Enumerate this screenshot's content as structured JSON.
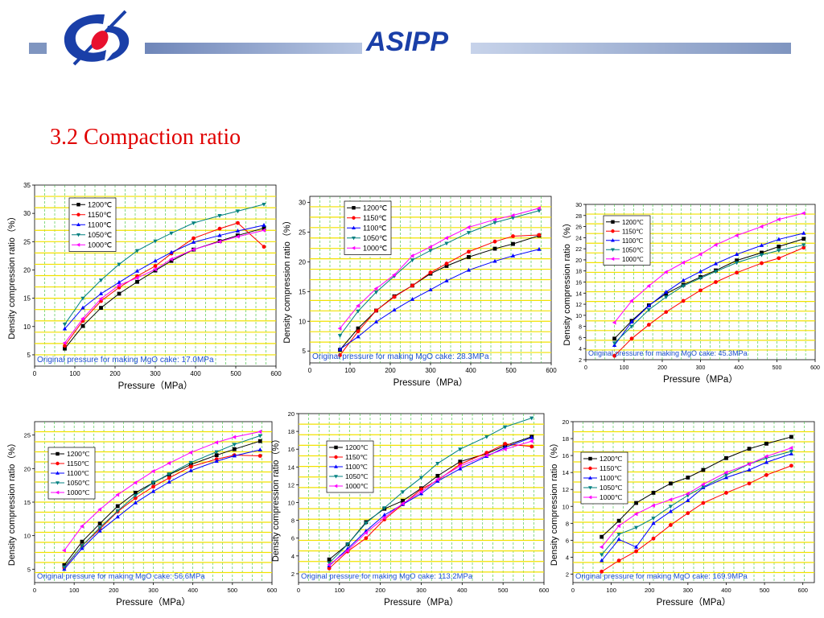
{
  "header": {
    "brand": "ASIPP"
  },
  "slide": {
    "title": "3.2 Compaction ratio"
  },
  "chart_data": [
    {
      "type": "line",
      "xlabel": "Pressure（MPa）",
      "ylabel": "Density compression ratio（%）",
      "xlim": [
        0,
        600
      ],
      "ylim": [
        3,
        35
      ],
      "xticks": [
        0,
        100,
        200,
        300,
        400,
        500,
        600
      ],
      "yticks": [
        5,
        10,
        15,
        20,
        25,
        30,
        35
      ],
      "annotation": "Original pressure for making MgO cake: 17.0MPa",
      "legend_position": "top-left",
      "x": [
        75,
        120,
        165,
        210,
        255,
        300,
        340,
        395,
        460,
        505,
        570
      ],
      "series": [
        {
          "name": "1200℃",
          "color": "#000000",
          "marker": "square",
          "values": [
            6.1,
            10.1,
            13.3,
            15.8,
            17.9,
            19.9,
            21.6,
            23.6,
            25.1,
            26.1,
            27.4
          ]
        },
        {
          "name": "1150℃",
          "color": "#ff0000",
          "marker": "circle",
          "values": [
            6.6,
            11.0,
            14.5,
            16.9,
            18.9,
            20.7,
            22.9,
            25.6,
            27.3,
            28.3,
            24.1
          ]
        },
        {
          "name": "1100℃",
          "color": "#0000ff",
          "marker": "triangle-up",
          "values": [
            9.6,
            13.3,
            15.8,
            17.8,
            19.8,
            21.6,
            23.1,
            24.9,
            26.1,
            26.9,
            27.9
          ]
        },
        {
          "name": "1050℃",
          "color": "#008080",
          "marker": "triangle-down",
          "values": [
            10.4,
            15.0,
            18.2,
            21.0,
            23.4,
            25.1,
            26.5,
            28.3,
            29.6,
            30.4,
            31.6
          ]
        },
        {
          "name": "1000℃",
          "color": "#ff00ff",
          "marker": "triangle-left",
          "values": [
            7.1,
            11.4,
            14.9,
            17.3,
            18.6,
            20.1,
            21.9,
            23.6,
            25.0,
            25.9,
            27.0
          ]
        }
      ]
    },
    {
      "type": "line",
      "xlabel": "Pressure（MPa）",
      "ylabel": "Density compression ratio（%）",
      "xlim": [
        0,
        600
      ],
      "ylim": [
        3,
        31
      ],
      "xticks": [
        0,
        100,
        200,
        300,
        400,
        500,
        600
      ],
      "yticks": [
        5,
        10,
        15,
        20,
        25,
        30
      ],
      "annotation": "Original pressure for making MgO cake: 28.3MPa",
      "legend_position": "top-left",
      "x": [
        75,
        120,
        165,
        210,
        255,
        300,
        340,
        395,
        460,
        505,
        570
      ],
      "series": [
        {
          "name": "1200℃",
          "color": "#000000",
          "marker": "square",
          "values": [
            5.2,
            8.8,
            11.8,
            14.2,
            16.0,
            18.0,
            19.3,
            20.8,
            22.2,
            23.0,
            24.4
          ]
        },
        {
          "name": "1150℃",
          "color": "#ff0000",
          "marker": "circle",
          "values": [
            4.3,
            8.3,
            11.8,
            14.1,
            16.0,
            18.2,
            19.7,
            21.7,
            23.4,
            24.3,
            24.5
          ]
        },
        {
          "name": "1100℃",
          "color": "#0000ff",
          "marker": "triangle-up",
          "values": [
            5.3,
            7.4,
            9.9,
            11.9,
            13.7,
            15.3,
            16.8,
            18.6,
            20.1,
            21.0,
            22.1
          ]
        },
        {
          "name": "1050℃",
          "color": "#008080",
          "marker": "triangle-down",
          "values": [
            7.6,
            11.7,
            14.9,
            17.6,
            20.3,
            21.9,
            23.1,
            24.9,
            26.6,
            27.4,
            28.6
          ]
        },
        {
          "name": "1000℃",
          "color": "#ff00ff",
          "marker": "triangle-left",
          "values": [
            8.8,
            12.6,
            15.5,
            17.8,
            21.0,
            22.5,
            24.0,
            25.8,
            27.1,
            27.8,
            29.0
          ]
        }
      ]
    },
    {
      "type": "line",
      "xlabel": "Pressure（MPa）",
      "ylabel": "Density compression ratio（%）",
      "xlim": [
        0,
        600
      ],
      "ylim": [
        2,
        30
      ],
      "xticks": [
        0,
        100,
        200,
        300,
        400,
        500,
        600
      ],
      "yticks": [
        2,
        4,
        6,
        8,
        10,
        12,
        14,
        16,
        18,
        20,
        22,
        24,
        26,
        28,
        30
      ],
      "annotation": "Original pressure for making MgO cake: 45.3MPa",
      "legend_position": "top-left",
      "x": [
        75,
        120,
        165,
        210,
        255,
        300,
        340,
        395,
        460,
        505,
        570
      ],
      "series": [
        {
          "name": "1200℃",
          "color": "#000000",
          "marker": "square",
          "values": [
            5.8,
            9.0,
            11.8,
            13.9,
            15.5,
            16.9,
            18.1,
            19.9,
            21.3,
            22.4,
            23.8
          ]
        },
        {
          "name": "1150℃",
          "color": "#ff0000",
          "marker": "circle",
          "values": [
            2.7,
            5.8,
            8.3,
            10.6,
            12.6,
            14.5,
            16.0,
            17.7,
            19.4,
            20.3,
            22.2
          ]
        },
        {
          "name": "1100℃",
          "color": "#0000ff",
          "marker": "triangle-up",
          "values": [
            4.6,
            8.8,
            11.7,
            14.2,
            16.3,
            17.9,
            19.3,
            21.0,
            22.6,
            23.7,
            24.8
          ]
        },
        {
          "name": "1050℃",
          "color": "#008080",
          "marker": "triangle-down",
          "values": [
            5.0,
            8.0,
            11.0,
            13.3,
            15.3,
            16.7,
            17.9,
            19.5,
            20.9,
            21.7,
            22.7
          ]
        },
        {
          "name": "1000℃",
          "color": "#ff00ff",
          "marker": "triangle-left",
          "values": [
            8.7,
            12.6,
            15.3,
            17.8,
            19.5,
            21.0,
            22.7,
            24.4,
            26.0,
            27.3,
            28.4
          ]
        }
      ]
    },
    {
      "type": "line",
      "xlabel": "Pressure（MPa）",
      "ylabel": "Density compression ratio（%）",
      "xlim": [
        0,
        600
      ],
      "ylim": [
        3,
        27
      ],
      "xticks": [
        0,
        100,
        200,
        300,
        400,
        500,
        600
      ],
      "yticks": [
        5,
        10,
        15,
        20,
        25
      ],
      "annotation": "Original pressure for making MgO cake: 56.6MPa",
      "legend_position": "top-left",
      "x": [
        75,
        120,
        165,
        210,
        255,
        300,
        340,
        395,
        460,
        505,
        570
      ],
      "series": [
        {
          "name": "1200℃",
          "color": "#000000",
          "marker": "square",
          "values": [
            5.6,
            9.1,
            11.8,
            14.4,
            16.4,
            17.9,
            19.1,
            20.6,
            22.0,
            22.9,
            24.1
          ]
        },
        {
          "name": "1150℃",
          "color": "#ff0000",
          "marker": "circle",
          "values": [
            5.2,
            8.5,
            11.0,
            13.6,
            15.6,
            17.3,
            18.6,
            20.3,
            21.4,
            22.0,
            21.9
          ]
        },
        {
          "name": "1100℃",
          "color": "#0000ff",
          "marker": "triangle-up",
          "values": [
            5.0,
            8.1,
            10.7,
            12.8,
            14.9,
            16.6,
            18.0,
            19.7,
            21.1,
            21.9,
            22.8
          ]
        },
        {
          "name": "1050℃",
          "color": "#008080",
          "marker": "triangle-down",
          "values": [
            5.3,
            8.5,
            11.2,
            13.7,
            16.0,
            17.9,
            19.2,
            20.9,
            22.5,
            23.6,
            24.9
          ]
        },
        {
          "name": "1000℃",
          "color": "#ff00ff",
          "marker": "triangle-left",
          "values": [
            7.8,
            11.4,
            13.9,
            16.1,
            17.9,
            19.6,
            20.8,
            22.4,
            23.9,
            24.7,
            25.5
          ]
        }
      ]
    },
    {
      "type": "line",
      "xlabel": "Pressure（MPa）",
      "ylabel": "Density compression ratio（%）",
      "xlim": [
        0,
        600
      ],
      "ylim": [
        1,
        20
      ],
      "xticks": [
        0,
        100,
        200,
        300,
        400,
        500,
        600
      ],
      "yticks": [
        2,
        4,
        6,
        8,
        10,
        12,
        14,
        16,
        18,
        20
      ],
      "annotation": "Original pressure for making MgO cake: 113.2MPa",
      "legend_position": "top-left",
      "x": [
        75,
        120,
        165,
        210,
        255,
        300,
        340,
        395,
        460,
        505,
        570
      ],
      "series": [
        {
          "name": "1200℃",
          "color": "#000000",
          "marker": "square",
          "values": [
            3.6,
            5.3,
            7.8,
            9.3,
            10.2,
            11.6,
            13.0,
            14.6,
            15.5,
            16.4,
            17.4
          ]
        },
        {
          "name": "1150℃",
          "color": "#ff0000",
          "marker": "circle",
          "values": [
            2.6,
            4.5,
            6.0,
            8.1,
            9.8,
            11.5,
            12.5,
            14.3,
            15.6,
            16.6,
            16.3
          ]
        },
        {
          "name": "1100℃",
          "color": "#0000ff",
          "marker": "triangle-up",
          "values": [
            2.9,
            4.8,
            6.8,
            8.6,
            9.8,
            11.0,
            12.4,
            13.8,
            15.2,
            16.2,
            17.3
          ]
        },
        {
          "name": "1050℃",
          "color": "#008080",
          "marker": "triangle-down",
          "values": [
            3.2,
            5.3,
            7.7,
            9.4,
            11.2,
            12.8,
            14.4,
            16.0,
            17.4,
            18.5,
            19.5
          ]
        },
        {
          "name": "1000℃",
          "color": "#ff00ff",
          "marker": "triangle-left",
          "values": [
            3.0,
            4.6,
            6.6,
            8.3,
            9.9,
            11.2,
            12.6,
            14.1,
            15.3,
            16.0,
            16.9
          ]
        }
      ]
    },
    {
      "type": "line",
      "xlabel": "Pressure（MPa）",
      "ylabel": "Density compression ratio（%）",
      "xlim": [
        0,
        630
      ],
      "ylim": [
        1,
        20
      ],
      "xticks": [
        0,
        100,
        200,
        300,
        400,
        500,
        600
      ],
      "yticks": [
        2,
        4,
        6,
        8,
        10,
        12,
        14,
        16,
        18,
        20
      ],
      "annotation": "Original pressure for making MgO cake: 169.9MPa",
      "legend_position": "top-left",
      "x": [
        75,
        120,
        165,
        210,
        255,
        300,
        340,
        400,
        460,
        505,
        570
      ],
      "series": [
        {
          "name": "1200℃",
          "color": "#000000",
          "marker": "square",
          "values": [
            6.4,
            8.3,
            10.4,
            11.6,
            12.7,
            13.4,
            14.3,
            15.7,
            16.8,
            17.4,
            18.2
          ]
        },
        {
          "name": "1150℃",
          "color": "#ff0000",
          "marker": "circle",
          "values": [
            2.3,
            3.6,
            4.7,
            6.2,
            7.8,
            9.2,
            10.4,
            11.6,
            12.7,
            13.7,
            14.8
          ]
        },
        {
          "name": "1100℃",
          "color": "#0000ff",
          "marker": "triangle-up",
          "values": [
            3.6,
            6.1,
            5.2,
            8.0,
            9.4,
            10.7,
            12.2,
            13.4,
            14.3,
            15.2,
            16.2
          ]
        },
        {
          "name": "1050℃",
          "color": "#008080",
          "marker": "triangle-down",
          "values": [
            4.3,
            6.7,
            7.5,
            8.6,
            10.0,
            11.3,
            12.3,
            13.7,
            15.0,
            15.7,
            16.5
          ]
        },
        {
          "name": "1000℃",
          "color": "#ff00ff",
          "marker": "triangle-left",
          "values": [
            5.2,
            7.7,
            9.1,
            10.1,
            10.8,
            11.5,
            12.6,
            14.0,
            15.0,
            15.9,
            16.9
          ]
        }
      ]
    }
  ]
}
